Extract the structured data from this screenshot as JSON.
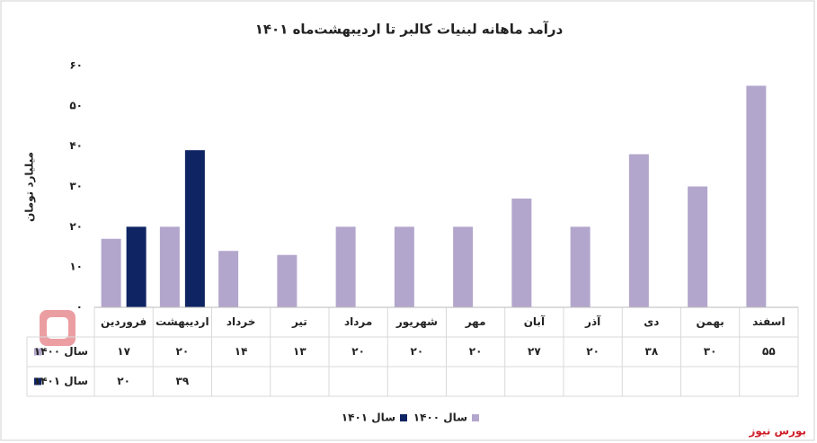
{
  "chart_data": {
    "type": "bar",
    "title": "درآمد ماهانه لبنیات کالبر تا اردیبهشت‌ماه ۱۴۰۱",
    "y_label": "میلیارد تومان",
    "categories": [
      "فروردین",
      "اردیبهشت",
      "خرداد",
      "تیر",
      "مرداد",
      "شهریور",
      "مهر",
      "آبان",
      "آذر",
      "دی",
      "بهمن",
      "اسفند"
    ],
    "series": [
      {
        "name": "سال ۱۴۰۰",
        "color": "#b3a6cc",
        "values": [
          17,
          20,
          14,
          13,
          20,
          20,
          20,
          27,
          20,
          38,
          30,
          55
        ],
        "value_labels": [
          "۱۷",
          "۲۰",
          "۱۴",
          "۱۳",
          "۲۰",
          "۲۰",
          "۲۰",
          "۲۷",
          "۲۰",
          "۳۸",
          "۳۰",
          "۵۵"
        ]
      },
      {
        "name": "سال ۱۴۰۱",
        "color": "#0f2463",
        "values": [
          20,
          39,
          null,
          null,
          null,
          null,
          null,
          null,
          null,
          null,
          null,
          null
        ],
        "value_labels": [
          "۲۰",
          "۳۹",
          null,
          null,
          null,
          null,
          null,
          null,
          null,
          null,
          null,
          null
        ]
      }
    ],
    "ylim": [
      0,
      60
    ],
    "yticks": [
      {
        "value": 0,
        "label": "۰"
      },
      {
        "value": 10,
        "label": "۱۰"
      },
      {
        "value": 20,
        "label": "۲۰"
      },
      {
        "value": 30,
        "label": "۳۰"
      },
      {
        "value": 40,
        "label": "۴۰"
      },
      {
        "value": 50,
        "label": "۵۰"
      },
      {
        "value": 60,
        "label": "۶۰"
      }
    ],
    "grid": false,
    "source": "بورس نیوز"
  }
}
